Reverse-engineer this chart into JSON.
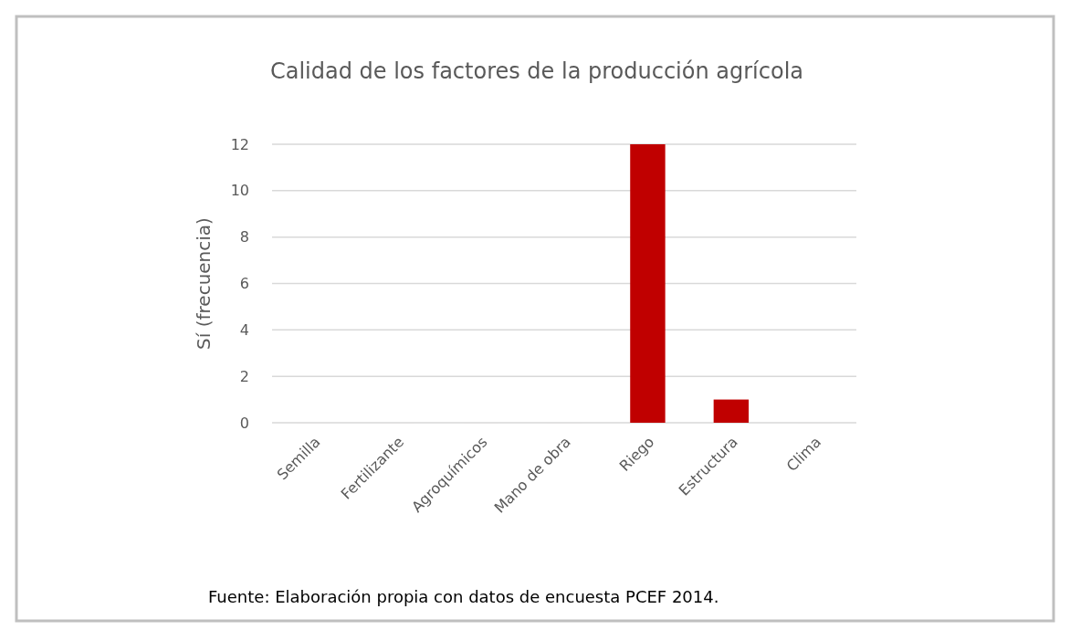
{
  "chart_data": {
    "type": "bar",
    "title": "Calidad de los factores de la producción agrícola",
    "ylabel": "Sí (frecuencia)",
    "categories": [
      "Semilla",
      "Fertilizante",
      "Agroquímicos",
      "Mano de obra",
      "Riego",
      "Estructura",
      "Clima"
    ],
    "values": [
      0,
      0,
      0,
      0,
      12,
      1,
      0
    ],
    "color": "#c00000",
    "ylim": [
      0,
      12
    ],
    "yticks": [
      0,
      2,
      4,
      6,
      8,
      10,
      12
    ],
    "grid": "y",
    "annotations": [
      "Fuente: Elaboración propia con datos de encuesta PCEF 2014."
    ]
  }
}
